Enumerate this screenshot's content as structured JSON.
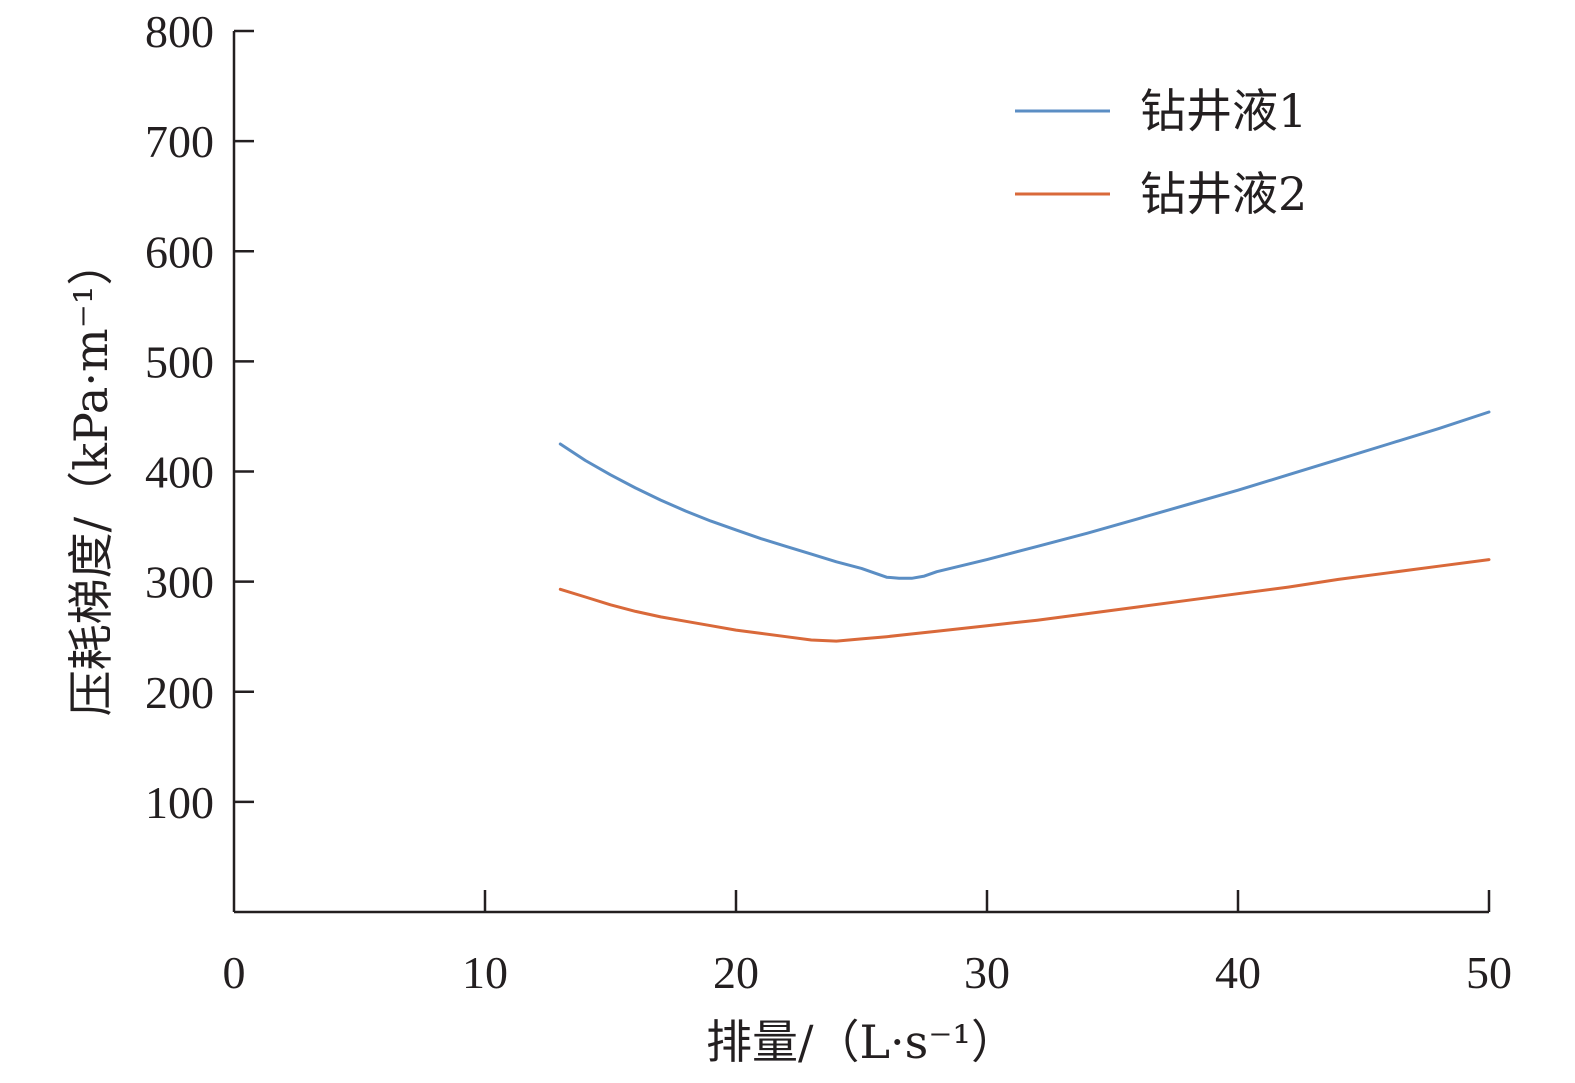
{
  "chart_data": {
    "type": "line",
    "xlabel": "排量/（L·s⁻¹）",
    "ylabel": "压耗梯度/（kPa·m⁻¹）",
    "xlim": [
      0,
      50
    ],
    "ylim": [
      0,
      800
    ],
    "x_ticks": [
      0,
      10,
      20,
      30,
      40,
      50
    ],
    "y_ticks": [
      100,
      200,
      300,
      400,
      500,
      600,
      700,
      800
    ],
    "grid": false,
    "legend_position": "top-right",
    "series": [
      {
        "name": "钻井液1",
        "color": "#5b8ec4",
        "x": [
          13,
          14,
          15,
          16,
          17,
          18,
          19,
          20,
          21,
          22,
          23,
          24,
          25,
          25.5,
          26,
          26.5,
          27,
          27.5,
          28,
          30,
          32,
          34,
          36,
          38,
          40,
          42,
          44,
          46,
          48,
          50
        ],
        "y": [
          425,
          410,
          397,
          385,
          374,
          364,
          355,
          347,
          339,
          332,
          325,
          318,
          312,
          308,
          304,
          303,
          303,
          305,
          309,
          320,
          332,
          344,
          357,
          370,
          383,
          397,
          411,
          425,
          439,
          454
        ]
      },
      {
        "name": "钻井液2",
        "color": "#d9693a",
        "x": [
          13,
          14,
          15,
          16,
          17,
          18,
          19,
          20,
          21,
          22,
          23,
          24,
          25,
          26,
          28,
          30,
          32,
          34,
          36,
          38,
          40,
          42,
          44,
          46,
          48,
          50
        ],
        "y": [
          293,
          286,
          279,
          273,
          268,
          264,
          260,
          256,
          253,
          250,
          247,
          246,
          248,
          250,
          255,
          260,
          265,
          271,
          277,
          283,
          289,
          295,
          302,
          308,
          314,
          320
        ]
      }
    ]
  }
}
